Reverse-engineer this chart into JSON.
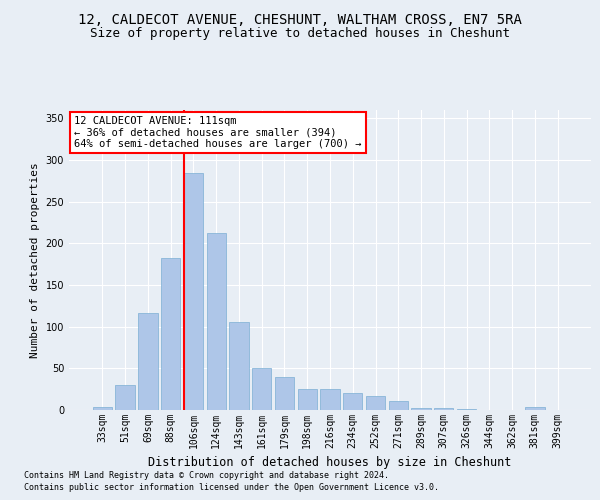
{
  "title1": "12, CALDECOT AVENUE, CHESHUNT, WALTHAM CROSS, EN7 5RA",
  "title2": "Size of property relative to detached houses in Cheshunt",
  "xlabel": "Distribution of detached houses by size in Cheshunt",
  "ylabel": "Number of detached properties",
  "footnote1": "Contains HM Land Registry data © Crown copyright and database right 2024.",
  "footnote2": "Contains public sector information licensed under the Open Government Licence v3.0.",
  "categories": [
    "33sqm",
    "51sqm",
    "69sqm",
    "88sqm",
    "106sqm",
    "124sqm",
    "143sqm",
    "161sqm",
    "179sqm",
    "198sqm",
    "216sqm",
    "234sqm",
    "252sqm",
    "271sqm",
    "289sqm",
    "307sqm",
    "326sqm",
    "344sqm",
    "362sqm",
    "381sqm",
    "399sqm"
  ],
  "values": [
    4,
    30,
    117,
    183,
    285,
    212,
    106,
    50,
    40,
    25,
    25,
    21,
    17,
    11,
    3,
    3,
    1,
    0,
    0,
    4,
    0
  ],
  "bar_color": "#aec6e8",
  "bar_edge_color": "#7bafd4",
  "vline_x_index": 4,
  "vline_color": "red",
  "annotation_box_text": "12 CALDECOT AVENUE: 111sqm\n← 36% of detached houses are smaller (394)\n64% of semi-detached houses are larger (700) →",
  "box_edge_color": "red",
  "ylim": [
    0,
    360
  ],
  "yticks": [
    0,
    50,
    100,
    150,
    200,
    250,
    300,
    350
  ],
  "bg_color": "#e8eef5",
  "grid_color": "white",
  "title1_fontsize": 10,
  "title2_fontsize": 9,
  "xlabel_fontsize": 8.5,
  "ylabel_fontsize": 8,
  "tick_fontsize": 7,
  "annotation_fontsize": 7.5,
  "footnote_fontsize": 6
}
